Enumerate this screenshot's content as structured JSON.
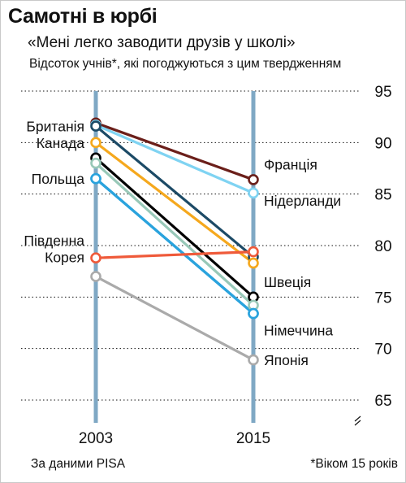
{
  "header": {
    "title": "Самотні в юрбі",
    "subtitle": "«Мені легко заводити друзів у школі»",
    "description": "Відсоток учнів*, які погоджуються з цим твердженням"
  },
  "footer": {
    "source": "За даними PISA",
    "note": "*Віком 15 років"
  },
  "chart_data": {
    "type": "line",
    "title": "Самотні в юрбі",
    "subtitle": "«Мені легко заводити друзів у школі»",
    "ylabel": "Відсоток учнів*, які погоджуються з цим твердженням",
    "x": [
      "2003",
      "2015"
    ],
    "ylim": [
      65,
      95
    ],
    "yticks": [
      65,
      70,
      75,
      80,
      85,
      90,
      95
    ],
    "grid": true,
    "axis_break": true,
    "series": [
      {
        "name": "Франція",
        "values": [
          91.9,
          86.4
        ],
        "color": "#6b1f1a"
      },
      {
        "name": "Нідерланди",
        "values": [
          91.7,
          85.1
        ],
        "color": "#7fd3f2"
      },
      {
        "name": "Британія",
        "values": [
          91.6,
          78.9
        ],
        "color": "#1c4a66"
      },
      {
        "name": "Канада",
        "values": [
          90.0,
          78.3
        ],
        "color": "#f5a81d"
      },
      {
        "name": "Швеція",
        "values": [
          88.5,
          75.0
        ],
        "color": "#000000"
      },
      {
        "name": "",
        "values": [
          88.0,
          74.2
        ],
        "color": "#98c8b8"
      },
      {
        "name": "Польща",
        "values": [
          86.5,
          73.4
        ],
        "color": "#2aa3dd"
      },
      {
        "name": "Німеччина",
        "values": [
          86.5,
          73.4
        ],
        "color": "#2aa3dd"
      },
      {
        "name": "Південна Корея",
        "values": [
          78.8,
          79.4
        ],
        "color": "#ef5a3a"
      },
      {
        "name": "Японія",
        "values": [
          77.0,
          68.9
        ],
        "color": "#aaaaaa"
      }
    ],
    "labels_2003": [
      {
        "text": "Британія",
        "value": 91.6
      },
      {
        "text": "Канада",
        "value": 90.0
      },
      {
        "text": "Польща",
        "value": 86.5
      },
      {
        "text": "Південна",
        "value": 80.5
      },
      {
        "text": "Корея",
        "value": 78.9
      }
    ],
    "labels_2015": [
      {
        "text": "Франція",
        "value": 87.9
      },
      {
        "text": "Нідерланди",
        "value": 84.4
      },
      {
        "text": "Швеція",
        "value": 76.5
      },
      {
        "text": "Німеччина",
        "value": 71.8
      },
      {
        "text": "Японія",
        "value": 68.9
      }
    ]
  }
}
